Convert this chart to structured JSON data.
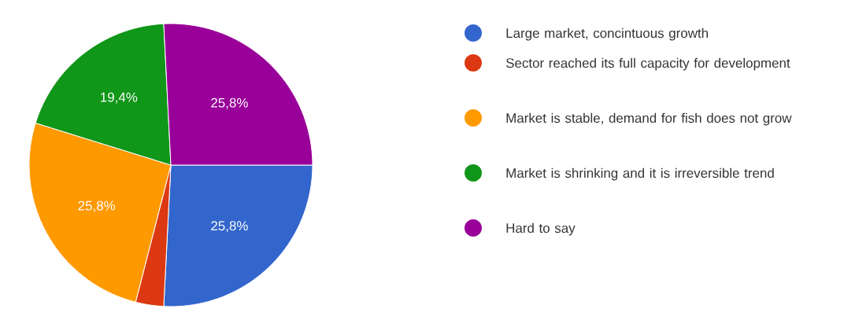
{
  "chart_data": {
    "type": "pie",
    "categories": [
      "Large market, concintuous growth",
      "Sector reached its full capacity for development",
      "Market is stable, demand for fish does not grow",
      "Market is shrinking and it is irreversible trend",
      "Hard to say"
    ],
    "values": [
      25.8,
      3.2,
      25.8,
      19.4,
      25.8
    ],
    "value_labels": [
      "25,8%",
      null,
      "25,8%",
      "19,4%",
      "25,8%"
    ],
    "colors": [
      "#3366cc",
      "#dc3912",
      "#ff9900",
      "#109618",
      "#990099"
    ],
    "legend": "right"
  }
}
